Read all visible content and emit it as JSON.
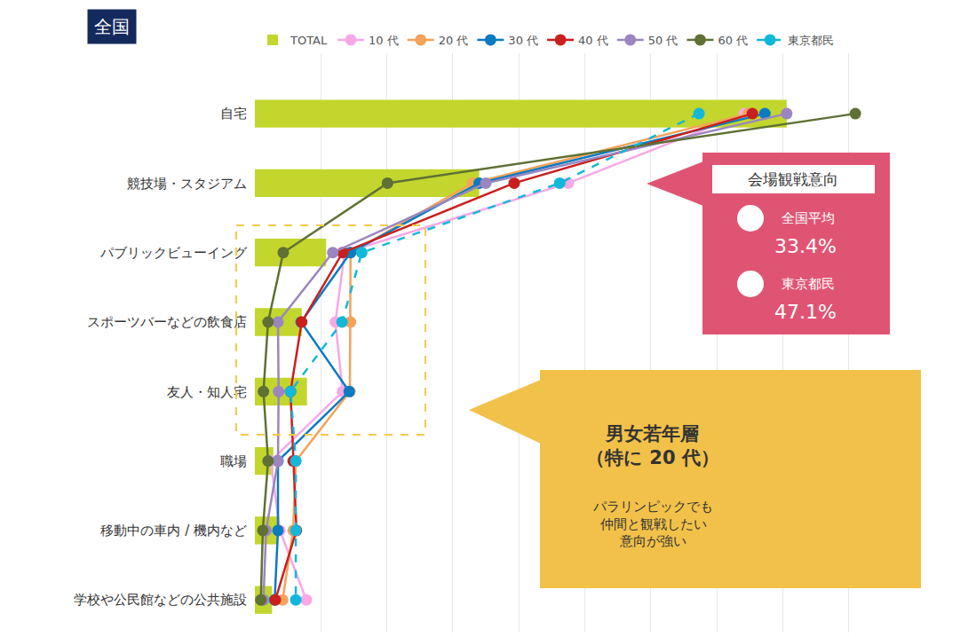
{
  "chart_data": {
    "type": "bar",
    "title": "全国",
    "orientation": "horizontal",
    "categories": [
      "自宅",
      "競技場・スタジアム",
      "パブリックビューイング",
      "スポーツバーなどの飲食店",
      "友人・知人宅",
      "職場",
      "移動中の車内 / 機内など",
      "学校や公民館などの公共施設"
    ],
    "xlim": [
      0,
      100
    ],
    "xticks": [
      0,
      10,
      20,
      30,
      40,
      50,
      60,
      70,
      80,
      90,
      100
    ],
    "grid": true,
    "tick_labels": "y",
    "legend": "top",
    "series": [
      {
        "name": "TOTAL",
        "type": "bar",
        "color": "#c3d62d",
        "values": [
          80.6,
          34.0,
          10.8,
          7.1,
          7.9,
          2.8,
          3.4,
          2.6
        ]
      },
      {
        "name": "10 代",
        "type": "line",
        "color": "#f7a8e6",
        "marker": "circle",
        "line_style": "solid",
        "values": [
          74.2,
          47.5,
          13.6,
          12.2,
          13.3,
          2.4,
          3.8,
          7.8
        ]
      },
      {
        "name": "20 代",
        "type": "line",
        "color": "#f5a25a",
        "marker": "circle",
        "line_style": "solid",
        "values": [
          74.8,
          33.0,
          14.5,
          14.5,
          14.4,
          6.2,
          5.8,
          4.2
        ]
      },
      {
        "name": "30 代",
        "type": "line",
        "color": "#0b7bc1",
        "marker": "circle",
        "line_style": "solid",
        "values": [
          77.3,
          34.0,
          14.5,
          7.0,
          14.3,
          3.5,
          3.5,
          3.0
        ]
      },
      {
        "name": "40 代",
        "type": "line",
        "color": "#c8201e",
        "marker": "circle",
        "line_style": "solid",
        "values": [
          75.4,
          39.3,
          13.3,
          7.1,
          5.4,
          5.8,
          6.3,
          3.1
        ]
      },
      {
        "name": "50 代",
        "type": "line",
        "color": "#9b86c0",
        "marker": "circle",
        "line_style": "solid",
        "values": [
          80.6,
          35.0,
          11.8,
          3.5,
          3.6,
          3.5,
          1.7,
          1.3
        ]
      },
      {
        "name": "60 代",
        "type": "line",
        "color": "#5f7134",
        "marker": "circle",
        "line_style": "solid",
        "values": [
          91.0,
          20.1,
          4.3,
          2.0,
          1.3,
          2.0,
          1.2,
          0.9
        ]
      },
      {
        "name": "東京都民",
        "type": "line",
        "color": "#12b8d9",
        "marker": "circle",
        "line_style": "dashed",
        "values": [
          67.3,
          46.2,
          16.2,
          13.2,
          5.4,
          6.2,
          6.2,
          6.2
        ]
      }
    ],
    "annotations": [
      {
        "title": "会場観戦意向",
        "items": [
          {
            "label": "全国平均",
            "text": "33.4%"
          },
          {
            "label": "東京都民",
            "text": "47.1%"
          }
        ]
      },
      {
        "title": [
          "男女若年層",
          "（特に 20 代）"
        ],
        "text": [
          "パラリンピックでも",
          "仲間と観戦したい",
          "意向が強い"
        ]
      }
    ]
  }
}
